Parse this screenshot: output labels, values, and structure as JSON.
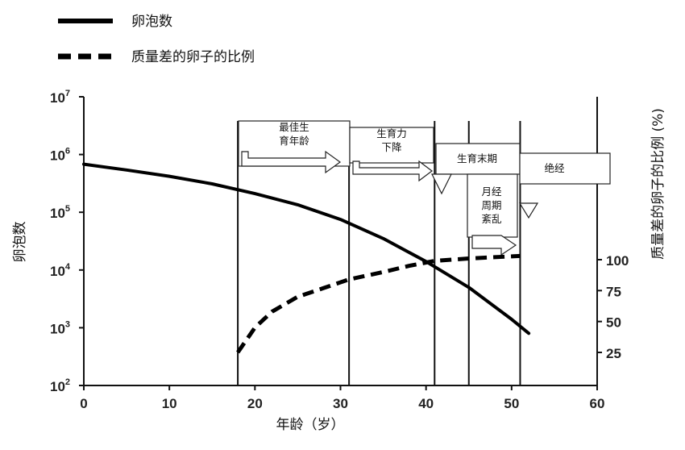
{
  "chart_data": {
    "type": "line",
    "legend": {
      "placement": "top-left",
      "entries": [
        {
          "label": "卵泡数",
          "style": "solid"
        },
        {
          "label": "质量差的卵子的比例",
          "style": "dashed"
        }
      ]
    },
    "xlabel": "年龄（岁）",
    "ylabel_left": "卵泡数",
    "ylabel_right": "质量差的卵子的比例 (%)",
    "x_ticks": [
      "0",
      "10",
      "20",
      "30",
      "40",
      "50",
      "60"
    ],
    "xlim": [
      0,
      60
    ],
    "y_left": {
      "scale": "log",
      "ylim": [
        100,
        10000000
      ],
      "ticks": [
        {
          "base": "10",
          "exp": "2",
          "value": 100
        },
        {
          "base": "10",
          "exp": "3",
          "value": 1000
        },
        {
          "base": "10",
          "exp": "4",
          "value": 10000
        },
        {
          "base": "10",
          "exp": "5",
          "value": 100000
        },
        {
          "base": "10",
          "exp": "6",
          "value": 1000000
        },
        {
          "base": "10",
          "exp": "7",
          "value": 10000000
        }
      ]
    },
    "y_right": {
      "ticks": [
        "100",
        "75",
        "50",
        "25"
      ],
      "tick_values": [
        100,
        75,
        50,
        25
      ]
    },
    "series": [
      {
        "name": "卵泡数",
        "axis": "left",
        "style": "solid",
        "x": [
          0,
          5,
          10,
          15,
          20,
          25,
          30,
          35,
          40,
          45,
          50,
          52
        ],
        "y": [
          680000,
          540000,
          420000,
          310000,
          210000,
          135000,
          75000,
          35000,
          14000,
          5000,
          1400,
          800
        ]
      },
      {
        "name": "质量差的卵子的比例",
        "axis": "right",
        "style": "dashed",
        "x": [
          18,
          20,
          22,
          25,
          28,
          31,
          35,
          38,
          41,
          45,
          48,
          51
        ],
        "y": [
          25,
          45,
          58,
          70,
          77,
          84,
          90,
          95,
          99,
          101,
          102,
          103
        ]
      }
    ],
    "phase_lines_x": [
      18,
      31,
      41,
      45,
      51
    ],
    "phases": [
      {
        "lines": [
          "最佳生",
          "育年龄"
        ]
      },
      {
        "lines": [
          "生育力",
          "下降"
        ]
      },
      {
        "lines": [
          "生育末期"
        ]
      },
      {
        "lines": [
          "月经",
          "周期",
          "紊乱"
        ]
      },
      {
        "lines": [
          "绝经"
        ]
      }
    ]
  }
}
